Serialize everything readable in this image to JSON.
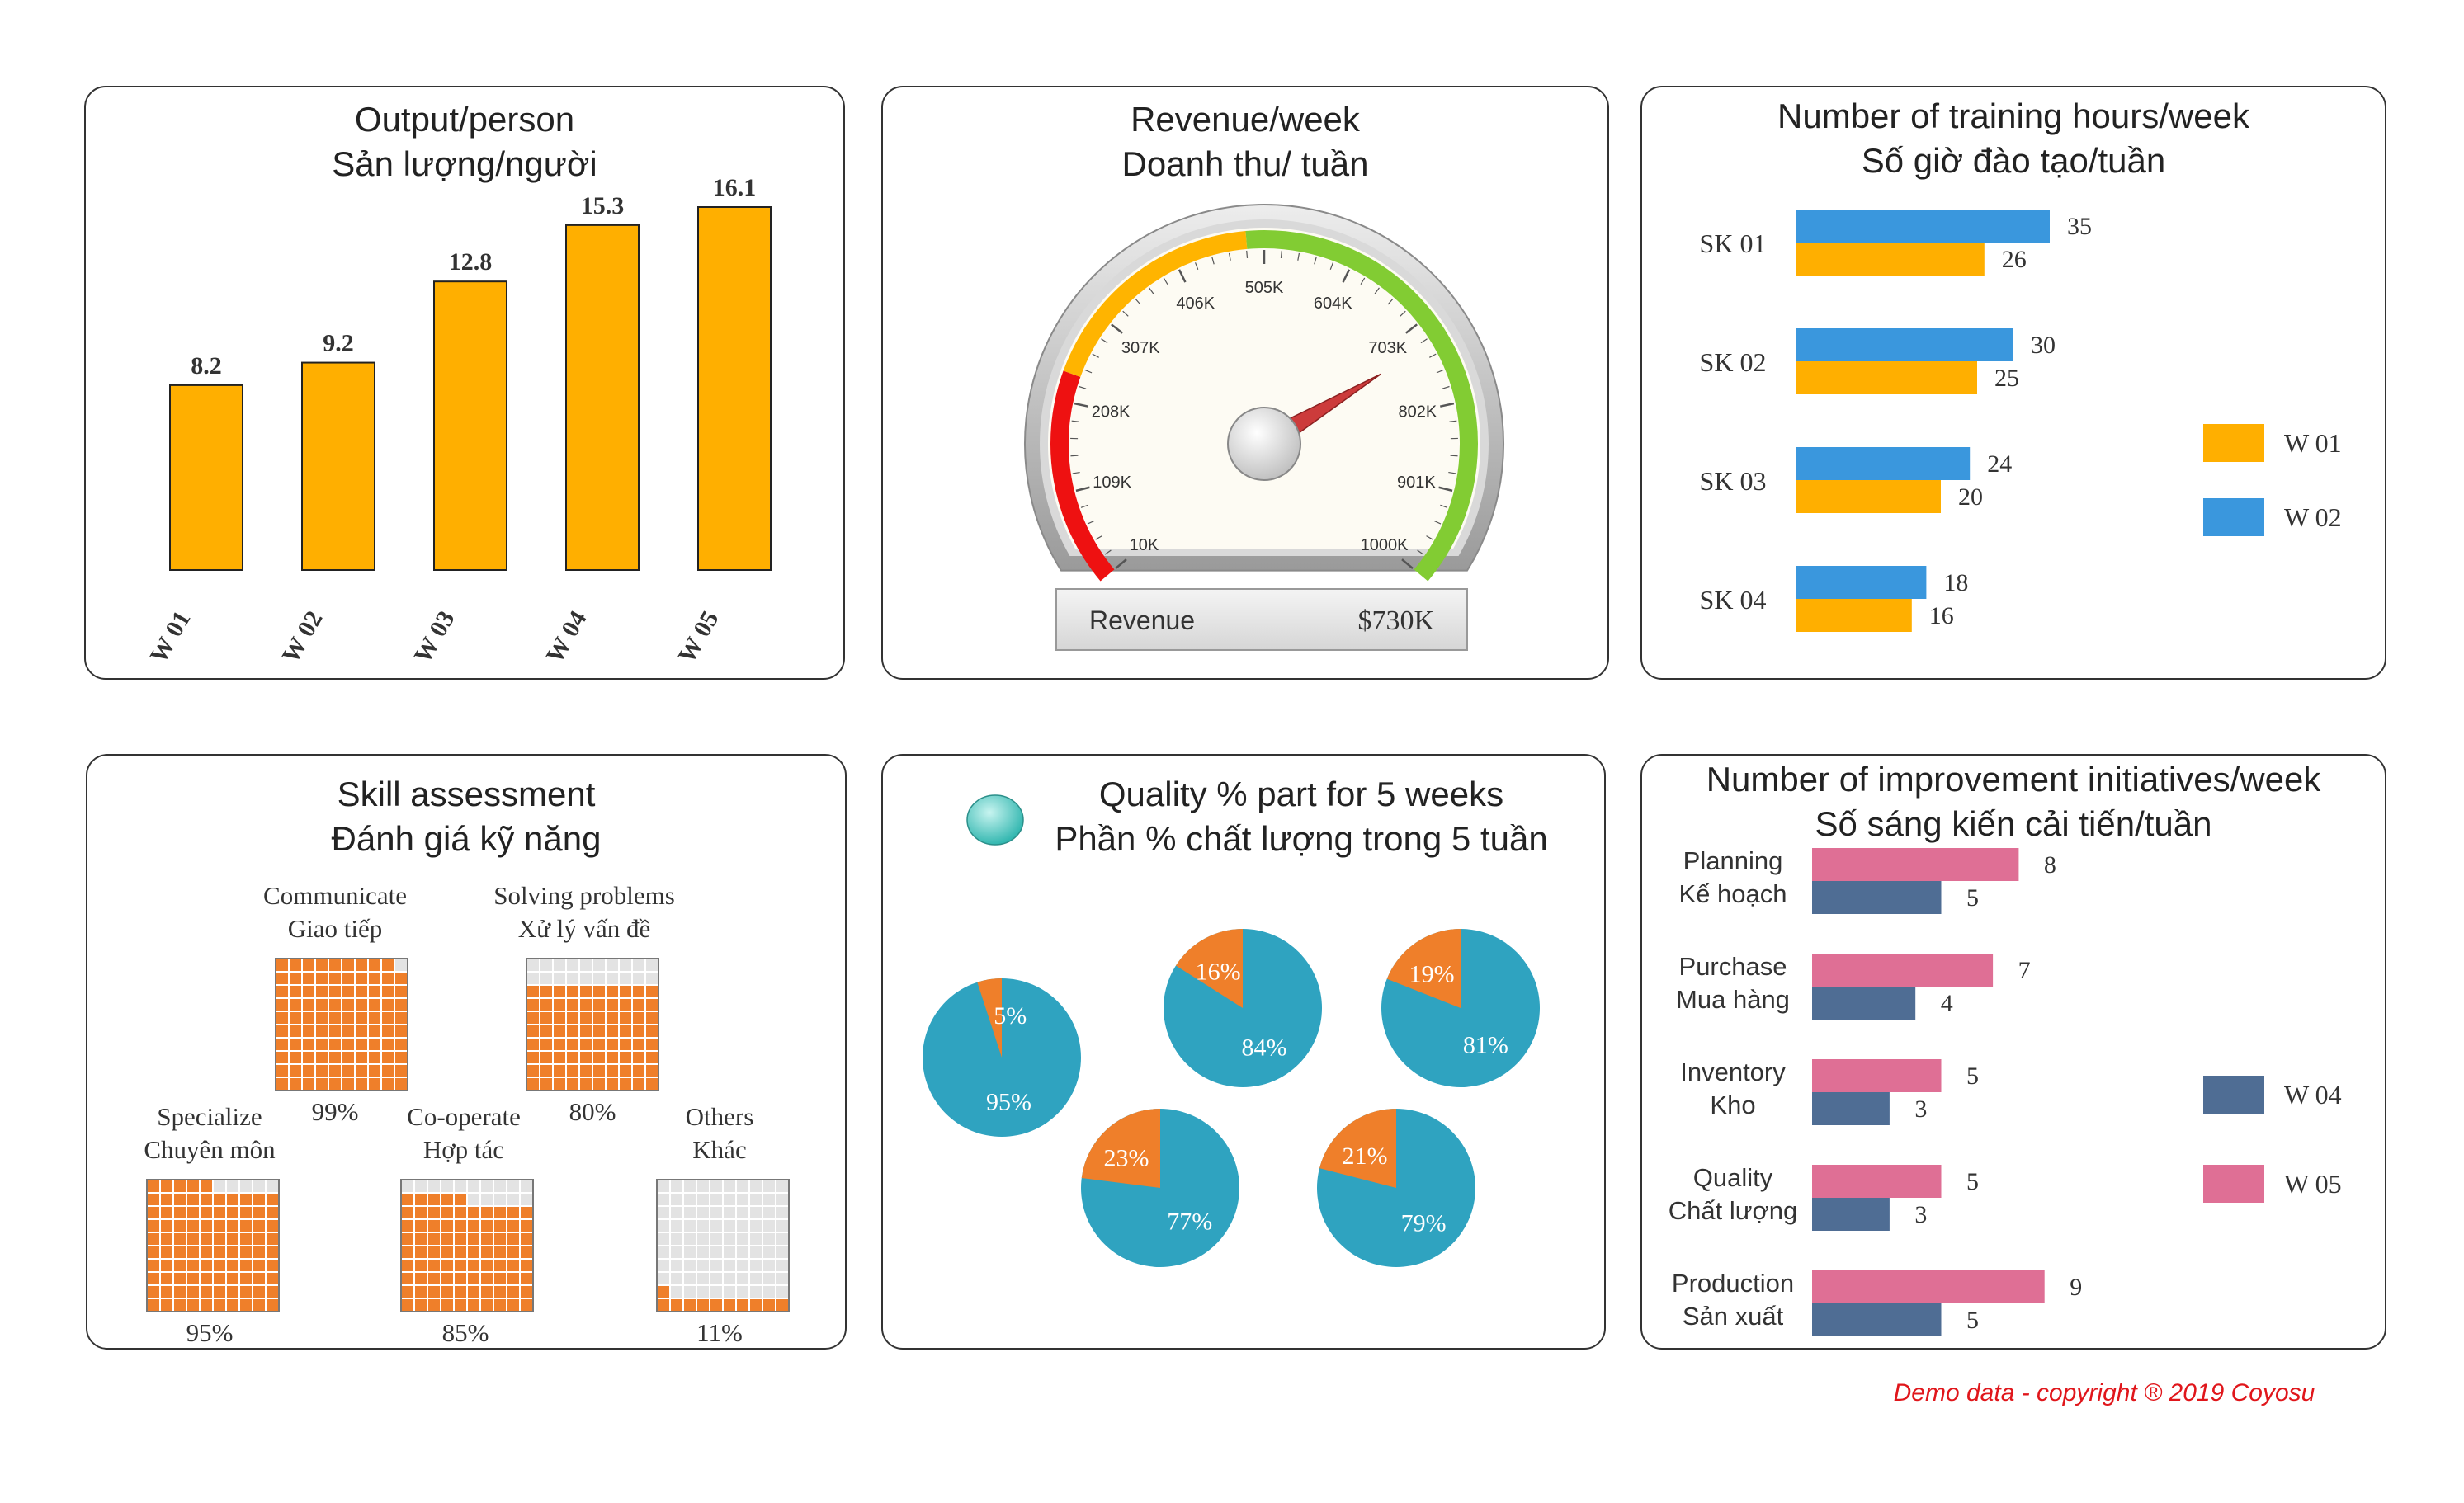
{
  "footer": "Demo data - copyright  ® 2019 Coyosu",
  "colors": {
    "orange": "#FFAF00",
    "blue": "#3A97DD",
    "pie_teal": "#2FA3C0",
    "pie_orange": "#EF7F2A",
    "pink": "#DF6F95",
    "slate": "#4F6D94",
    "waffle_fill": "#EF7F2A",
    "waffle_empty": "#E3E3E3"
  },
  "output": {
    "title1": "Output/person",
    "title2": "Sản lượng/người",
    "chart_data": {
      "type": "bar",
      "categories": [
        "W 01",
        "W 02",
        "W 03",
        "W 04",
        "W 05"
      ],
      "values": [
        8.2,
        9.2,
        12.8,
        15.3,
        16.1
      ],
      "labels": [
        "8.2",
        "9.2",
        "12.8",
        "15.3",
        "16.1"
      ]
    }
  },
  "revenue": {
    "title1": "Revenue/week",
    "title2": "Doanh thu/ tuần",
    "label": "Revenue",
    "value_text": "$730K",
    "value": 730,
    "min": 10,
    "max": 1000,
    "ticks": [
      "10K",
      "109K",
      "208K",
      "307K",
      "406K",
      "505K",
      "604K",
      "703K",
      "802K",
      "901K",
      "1000K"
    ]
  },
  "training": {
    "title1": "Number of training hours/week",
    "title2": "Số giờ đào tạo/tuần",
    "chart_data": {
      "type": "bar",
      "orientation": "horizontal",
      "categories": [
        "SK 01",
        "SK 02",
        "SK 03",
        "SK 04"
      ],
      "series": [
        {
          "name": "W 02",
          "values": [
            35,
            30,
            24,
            18
          ],
          "color": "#3A97DD"
        },
        {
          "name": "W 01",
          "values": [
            26,
            25,
            20,
            16
          ],
          "color": "#FFAF00"
        }
      ],
      "legend": [
        "W 01",
        "W 02"
      ]
    }
  },
  "skill": {
    "title1": "Skill assessment",
    "title2": "Đánh giá kỹ năng",
    "chart_data": {
      "type": "waffle",
      "items": [
        {
          "name1": "Communicate",
          "name2": "Giao tiếp",
          "value": 99,
          "label": "99%"
        },
        {
          "name1": "Solving problems",
          "name2": "Xử lý vấn đề",
          "value": 80,
          "label": "80%"
        },
        {
          "name1": "Specialize",
          "name2": "Chuyên môn",
          "value": 95,
          "label": "95%"
        },
        {
          "name1": "Co-operate",
          "name2": "Hợp tác",
          "value": 85,
          "label": "85%"
        },
        {
          "name1": "Others",
          "name2": "Khác",
          "value": 11,
          "label": "11%"
        }
      ]
    }
  },
  "quality": {
    "title1": "Quality % part for 5 weeks",
    "title2": "Phần % chất lượng trong 5 tuần",
    "chart_data": {
      "type": "pie",
      "pies": [
        {
          "good": 95,
          "bad": 5,
          "good_label": "95%",
          "bad_label": "5%"
        },
        {
          "good": 84,
          "bad": 16,
          "good_label": "84%",
          "bad_label": "16%"
        },
        {
          "good": 81,
          "bad": 19,
          "good_label": "81%",
          "bad_label": "19%"
        },
        {
          "good": 77,
          "bad": 23,
          "good_label": "77%",
          "bad_label": "23%"
        },
        {
          "good": 79,
          "bad": 21,
          "good_label": "79%",
          "bad_label": "21%"
        }
      ]
    }
  },
  "improvement": {
    "title1": "Number of improvement initiatives/week",
    "title2": "Số sáng kiến cải tiến/tuần",
    "chart_data": {
      "type": "bar",
      "orientation": "horizontal",
      "categories": [
        {
          "l1": "Planning",
          "l2": "Kế hoạch"
        },
        {
          "l1": "Purchase",
          "l2": "Mua hàng"
        },
        {
          "l1": "Inventory",
          "l2": "Kho"
        },
        {
          "l1": "Quality",
          "l2": "Chất lượng"
        },
        {
          "l1": "Production",
          "l2": "Sản xuất"
        }
      ],
      "series": [
        {
          "name": "W 05",
          "values": [
            8,
            7,
            5,
            5,
            9
          ],
          "color": "#DF6F95"
        },
        {
          "name": "W 04",
          "values": [
            5,
            4,
            3,
            3,
            5
          ],
          "color": "#4F6D94"
        }
      ],
      "legend": [
        "W 04",
        "W 05"
      ]
    }
  }
}
